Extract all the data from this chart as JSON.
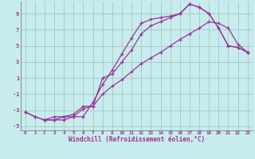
{
  "bg_color": "#c8ecec",
  "grid_color": "#a0c8c8",
  "line_color": "#993399",
  "xlim": [
    -0.5,
    23.5
  ],
  "ylim": [
    -5.5,
    10.5
  ],
  "xticks": [
    0,
    1,
    2,
    3,
    4,
    5,
    6,
    7,
    8,
    9,
    10,
    11,
    12,
    13,
    14,
    15,
    16,
    17,
    18,
    19,
    20,
    21,
    22,
    23
  ],
  "yticks": [
    -5,
    -3,
    -1,
    1,
    3,
    5,
    7,
    9
  ],
  "xlabel": "Windchill (Refroidissement éolien,°C)",
  "line1_x": [
    0,
    1,
    2,
    3,
    4,
    5,
    6,
    7,
    8,
    9,
    10,
    11,
    12,
    13,
    14,
    15,
    16,
    17,
    18,
    19,
    20,
    21,
    22,
    23
  ],
  "line1_y": [
    -3.2,
    -3.8,
    -4.2,
    -4.2,
    -4.2,
    -3.8,
    -3.8,
    -2.0,
    0.2,
    2.0,
    4.0,
    6.0,
    7.8,
    8.3,
    8.5,
    8.7,
    9.0,
    10.2,
    9.8,
    9.0,
    7.2,
    5.0,
    4.8,
    4.2
  ],
  "line2_x": [
    2,
    3,
    4,
    5,
    6,
    7,
    8,
    9,
    10,
    11,
    12,
    13,
    14,
    15,
    16,
    17,
    18,
    19,
    20,
    21,
    22,
    23
  ],
  "line2_y": [
    -4.2,
    -3.8,
    -3.8,
    -3.5,
    -2.5,
    -2.5,
    1.0,
    1.5,
    3.0,
    4.5,
    6.5,
    7.5,
    8.0,
    8.5,
    9.0,
    10.2,
    9.8,
    9.0,
    7.2,
    5.0,
    4.8,
    4.2
  ],
  "line3_x": [
    0,
    1,
    2,
    3,
    4,
    5,
    6,
    7,
    8,
    9,
    10,
    11,
    12,
    13,
    14,
    15,
    16,
    17,
    18,
    19,
    20,
    21,
    22,
    23
  ],
  "line3_y": [
    -3.2,
    -3.8,
    -4.2,
    -4.2,
    -3.8,
    -3.8,
    -2.8,
    -2.5,
    -1.0,
    0.0,
    0.8,
    1.8,
    2.8,
    3.5,
    4.2,
    5.0,
    5.8,
    6.5,
    7.2,
    8.0,
    7.8,
    7.2,
    5.2,
    4.2
  ]
}
